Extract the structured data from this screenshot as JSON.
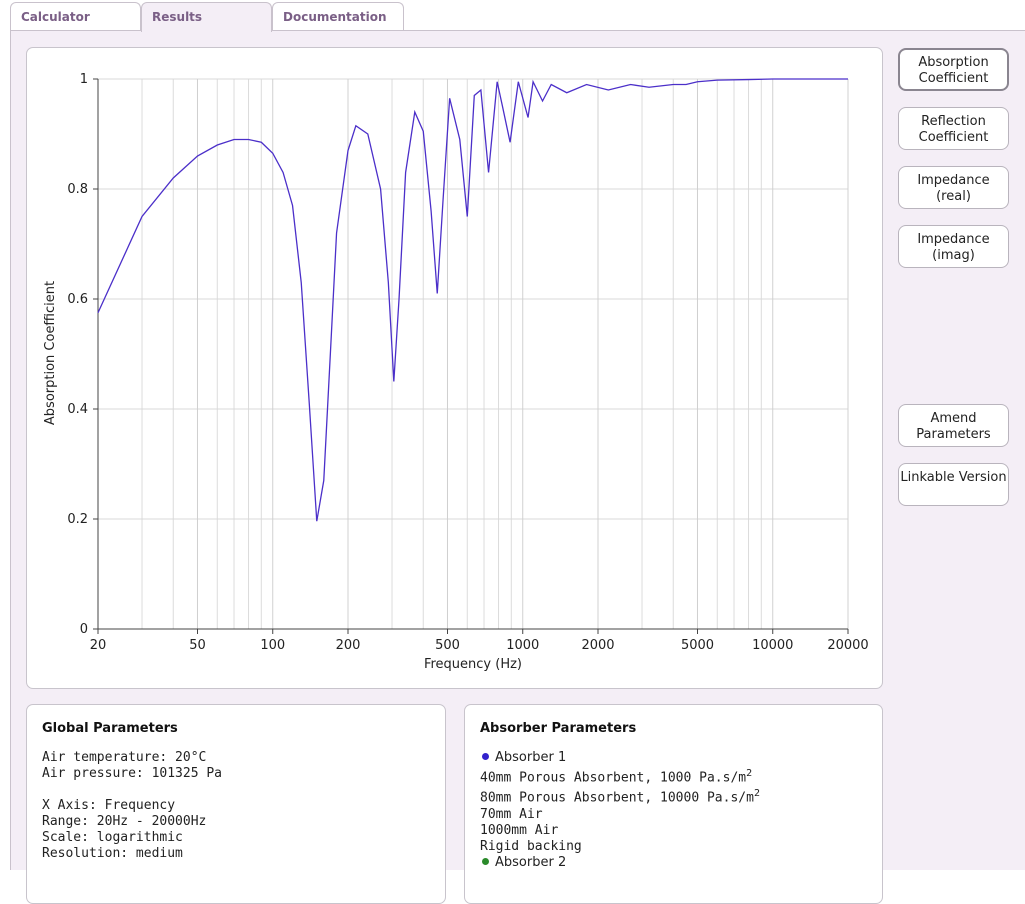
{
  "tabs": [
    "Calculator",
    "Results",
    "Documentation"
  ],
  "buttons": [
    "Absorption Coefficient",
    "Reflection Coefficient",
    "Impedance (real)",
    "Impedance (imag)",
    "Amend Parameters",
    "Linkable Version"
  ],
  "chart_data": {
    "type": "line",
    "xlabel": "Frequency (Hz)",
    "ylabel": "Absorption Coefficient",
    "log_x": true,
    "grid": true,
    "color": "#4b2fc9",
    "x": [
      20,
      30,
      40,
      50,
      60,
      70,
      80,
      90,
      100,
      110,
      120,
      130,
      140,
      150,
      160,
      170,
      180,
      200,
      215,
      240,
      270,
      290,
      305,
      320,
      340,
      370,
      400,
      430,
      455,
      480,
      510,
      560,
      600,
      640,
      680,
      730,
      790,
      830,
      890,
      960,
      1050,
      1100,
      1200,
      1300,
      1500,
      1800,
      2200,
      2700,
      3200,
      4000,
      4500,
      5000,
      6000,
      8000,
      10000,
      20000
    ],
    "values": [
      0.575,
      0.75,
      0.82,
      0.86,
      0.88,
      0.89,
      0.89,
      0.885,
      0.865,
      0.83,
      0.77,
      0.63,
      0.41,
      0.196,
      0.27,
      0.5,
      0.72,
      0.87,
      0.915,
      0.9,
      0.8,
      0.63,
      0.45,
      0.6,
      0.83,
      0.94,
      0.905,
      0.76,
      0.61,
      0.78,
      0.965,
      0.89,
      0.75,
      0.97,
      0.98,
      0.83,
      0.995,
      0.95,
      0.885,
      0.995,
      0.93,
      0.995,
      0.96,
      0.99,
      0.975,
      0.99,
      0.98,
      0.99,
      0.985,
      0.99,
      0.99,
      0.995,
      0.998,
      0.999,
      1,
      1
    ],
    "xlim": [
      20,
      20000
    ],
    "xticks": [
      20,
      50,
      100,
      200,
      500,
      1000,
      2000,
      5000,
      10000,
      20000
    ],
    "ylim": [
      0,
      1
    ],
    "yticks": [
      0,
      0.2,
      0.4,
      0.6,
      0.8,
      1
    ]
  },
  "global": {
    "title": "Global Parameters",
    "lines": [
      "Air temperature: 20°C",
      "Air pressure: 101325 Pa",
      "",
      "X Axis: Frequency",
      "Range: 20Hz - 20000Hz",
      "Scale: logarithmic",
      "Resolution: medium"
    ]
  },
  "absorber": {
    "title": "Absorber Parameters",
    "absorbers": [
      {
        "name": "Absorber 1",
        "color": "#3322cc",
        "layers": [
          {
            "text": "40mm Porous Absorbent, 1000 Pa.s/m",
            "sup": "2"
          },
          {
            "text": "80mm Porous Absorbent, 10000 Pa.s/m",
            "sup": "2"
          },
          {
            "text": "70mm Air"
          },
          {
            "text": "1000mm Air"
          },
          {
            "text": "Rigid backing"
          }
        ]
      },
      {
        "name": "Absorber 2",
        "color": "#2a8a2a",
        "layers": []
      }
    ]
  }
}
